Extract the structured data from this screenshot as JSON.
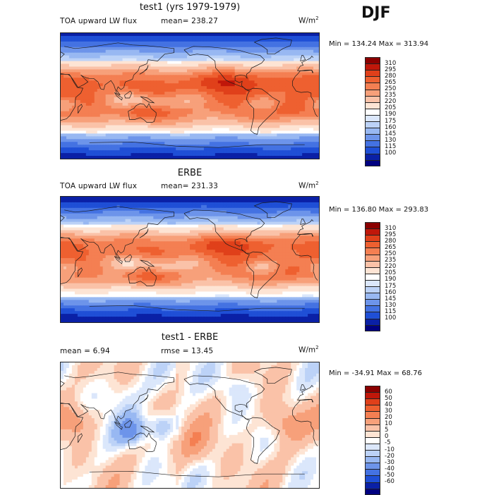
{
  "season": "DJF",
  "panels": [
    {
      "title": "test1 (yrs 1979-1979)",
      "left_label": "TOA upward LW flux",
      "mean_label": "mean= 238.27",
      "units_base": "W/m",
      "units_exp": "2",
      "minmax": "Min = 134.24 Max = 313.94",
      "scale_kind": "abs",
      "colorbar": {
        "levels": [
          "310",
          "295",
          "280",
          "265",
          "250",
          "235",
          "220",
          "205",
          "190",
          "175",
          "160",
          "145",
          "130",
          "115",
          "100"
        ],
        "colors": [
          "#8b0000",
          "#c0170a",
          "#e0401a",
          "#ee6030",
          "#f47f52",
          "#f7a07a",
          "#fac2a8",
          "#fde4d4",
          "#ffffff",
          "#dbe7fb",
          "#bcd2f7",
          "#98b8f2",
          "#6d94ea",
          "#4472e2",
          "#1f4fd6",
          "#0a20a6",
          "#000080"
        ]
      }
    },
    {
      "title": "ERBE",
      "left_label": "TOA upward LW flux",
      "mean_label": "mean= 231.33",
      "units_base": "W/m",
      "units_exp": "2",
      "minmax": "Min = 136.80 Max = 293.83",
      "scale_kind": "abs",
      "colorbar": {
        "levels": [
          "310",
          "295",
          "280",
          "265",
          "250",
          "235",
          "220",
          "205",
          "190",
          "175",
          "160",
          "145",
          "130",
          "115",
          "100"
        ],
        "colors": [
          "#8b0000",
          "#c0170a",
          "#e0401a",
          "#ee6030",
          "#f47f52",
          "#f7a07a",
          "#fac2a8",
          "#fde4d4",
          "#ffffff",
          "#dbe7fb",
          "#bcd2f7",
          "#98b8f2",
          "#6d94ea",
          "#4472e2",
          "#1f4fd6",
          "#0a20a6",
          "#000080"
        ]
      }
    },
    {
      "title": "test1 - ERBE",
      "left_label": "mean =    6.94",
      "mean_label": "rmse =   13.45",
      "units_base": "W/m",
      "units_exp": "2",
      "minmax": "Min = -34.91 Max =   68.76",
      "scale_kind": "diff",
      "colorbar": {
        "levels": [
          "60",
          "50",
          "40",
          "30",
          "20",
          "10",
          "5",
          "0",
          "-5",
          "-10",
          "-20",
          "-30",
          "-40",
          "-50",
          "-60"
        ],
        "colors": [
          "#8b0000",
          "#c0170a",
          "#e0401a",
          "#ee6030",
          "#f47f52",
          "#f7a07a",
          "#fac2a8",
          "#fde4d4",
          "#ffffff",
          "#dbe7fb",
          "#bcd2f7",
          "#98b8f2",
          "#6d94ea",
          "#4472e2",
          "#1f4fd6",
          "#0a20a6",
          "#000080"
        ]
      }
    }
  ]
}
